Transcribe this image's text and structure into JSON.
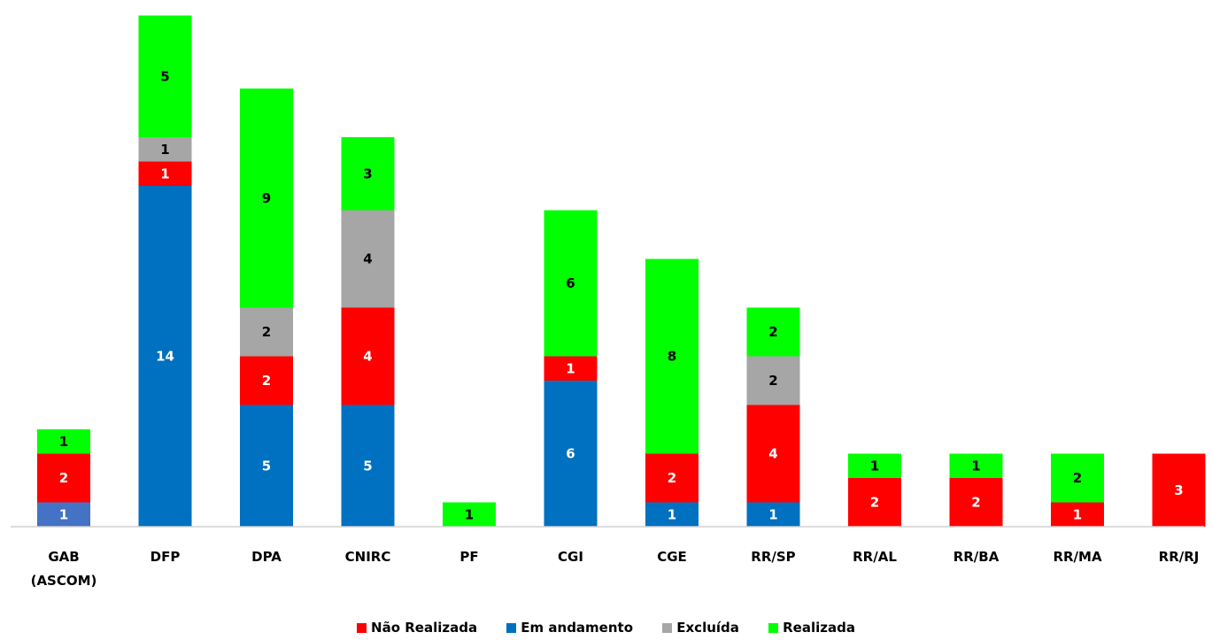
{
  "chart_data": {
    "type": "bar",
    "stacked": true,
    "categories": [
      "GAB (ASCOM)",
      "DFP",
      "DPA",
      "CNIRC",
      "PF",
      "CGI",
      "CGE",
      "RR/SP",
      "RR/AL",
      "RR/BA",
      "RR/MA",
      "RR/RJ"
    ],
    "series": [
      {
        "name": "Não Realizada",
        "color": "#ff0000",
        "values": [
          2,
          1,
          2,
          4,
          0,
          1,
          2,
          4,
          2,
          2,
          1,
          3
        ]
      },
      {
        "name": "Em andamento",
        "color": "#0070c0",
        "values": [
          1,
          14,
          5,
          5,
          0,
          6,
          1,
          1,
          0,
          0,
          0,
          0
        ]
      },
      {
        "name": "Excluída",
        "color": "#a6a6a6",
        "values": [
          0,
          1,
          2,
          4,
          0,
          0,
          0,
          2,
          0,
          0,
          0,
          0
        ]
      },
      {
        "name": "Realizada",
        "color": "#00ff00",
        "values": [
          1,
          5,
          9,
          3,
          1,
          6,
          8,
          2,
          1,
          1,
          2,
          0
        ]
      }
    ],
    "stack_order": [
      1,
      0,
      2,
      3
    ],
    "data_labels": true,
    "grid": false,
    "legend_position": "bottom",
    "title": "",
    "xlabel": "",
    "ylabel": ""
  },
  "legend": {
    "items": [
      {
        "label": "Não Realizada",
        "color": "#ff0000"
      },
      {
        "label": "Em andamento",
        "color": "#0070c0"
      },
      {
        "label": "Excluída",
        "color": "#a6a6a6"
      },
      {
        "label": "Realizada",
        "color": "#00ff00"
      }
    ]
  }
}
